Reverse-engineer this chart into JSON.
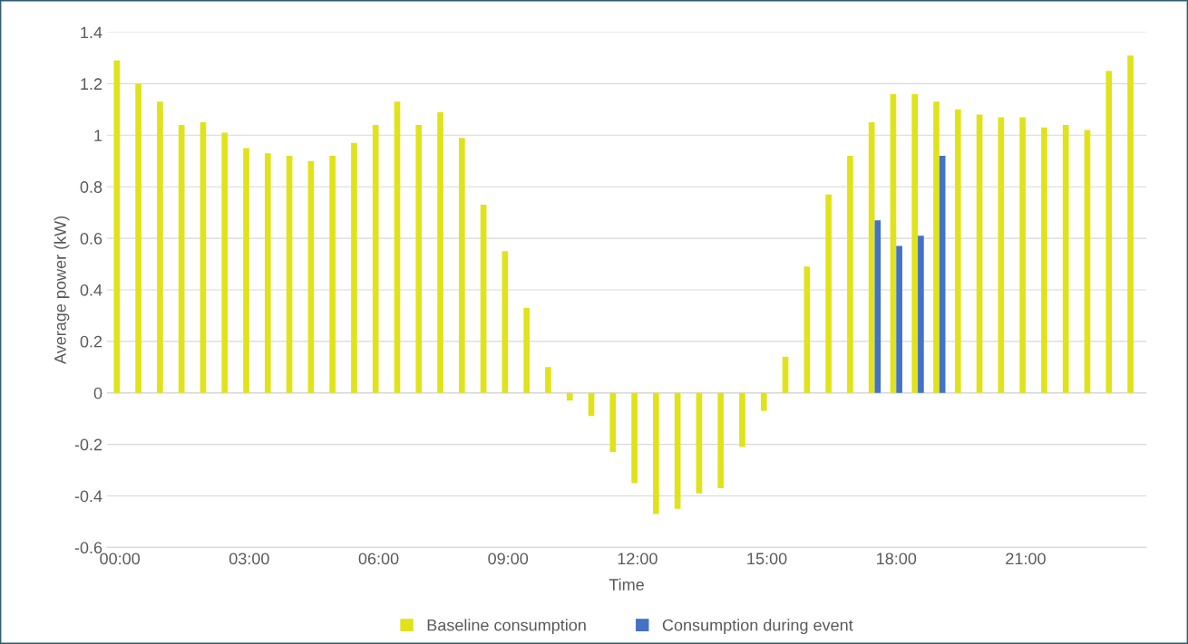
{
  "chart_data": {
    "type": "bar",
    "xlabel": "Time",
    "ylabel": "Average power (kW)",
    "categories": [
      "00:00",
      null,
      null,
      null,
      null,
      null,
      "03:00",
      null,
      null,
      null,
      null,
      null,
      "06:00",
      null,
      null,
      null,
      null,
      null,
      "09:00",
      null,
      null,
      null,
      null,
      null,
      "12:00",
      null,
      null,
      null,
      null,
      null,
      "15:00",
      null,
      null,
      null,
      null,
      null,
      "18:00",
      null,
      null,
      null,
      null,
      null,
      "21:00",
      null,
      null,
      null,
      null,
      null
    ],
    "series": [
      {
        "name": "Baseline consumption",
        "color": "#e0e31a",
        "values": [
          1.29,
          1.2,
          1.13,
          1.04,
          1.05,
          1.01,
          0.95,
          0.93,
          0.92,
          0.9,
          0.92,
          0.97,
          1.04,
          1.13,
          1.04,
          1.09,
          0.99,
          0.73,
          0.55,
          0.33,
          0.1,
          -0.03,
          -0.09,
          -0.23,
          -0.35,
          -0.47,
          -0.45,
          -0.39,
          -0.37,
          -0.21,
          -0.07,
          0.14,
          0.49,
          0.77,
          0.92,
          1.05,
          1.16,
          1.16,
          1.13,
          1.1,
          1.08,
          1.07,
          1.07,
          1.03,
          1.04,
          1.02,
          1.25,
          1.31
        ]
      },
      {
        "name": "Consumption during event",
        "color": "#4472c4",
        "values": [
          null,
          null,
          null,
          null,
          null,
          null,
          null,
          null,
          null,
          null,
          null,
          null,
          null,
          null,
          null,
          null,
          null,
          null,
          null,
          null,
          null,
          null,
          null,
          null,
          null,
          null,
          null,
          null,
          null,
          null,
          null,
          null,
          null,
          null,
          null,
          0.67,
          0.57,
          0.61,
          0.92,
          null,
          null,
          null,
          null,
          null,
          null,
          null,
          null,
          null
        ]
      }
    ],
    "ylim": [
      -0.6,
      1.4
    ],
    "yticks": [
      {
        "value": -0.6,
        "label": "-0.6"
      },
      {
        "value": -0.4,
        "label": "-0.4"
      },
      {
        "value": -0.2,
        "label": "-0.2"
      },
      0,
      0.2,
      0.4,
      0.6,
      0.8,
      1,
      1.2,
      1.4
    ],
    "grid": "y",
    "legend": "bottom"
  }
}
